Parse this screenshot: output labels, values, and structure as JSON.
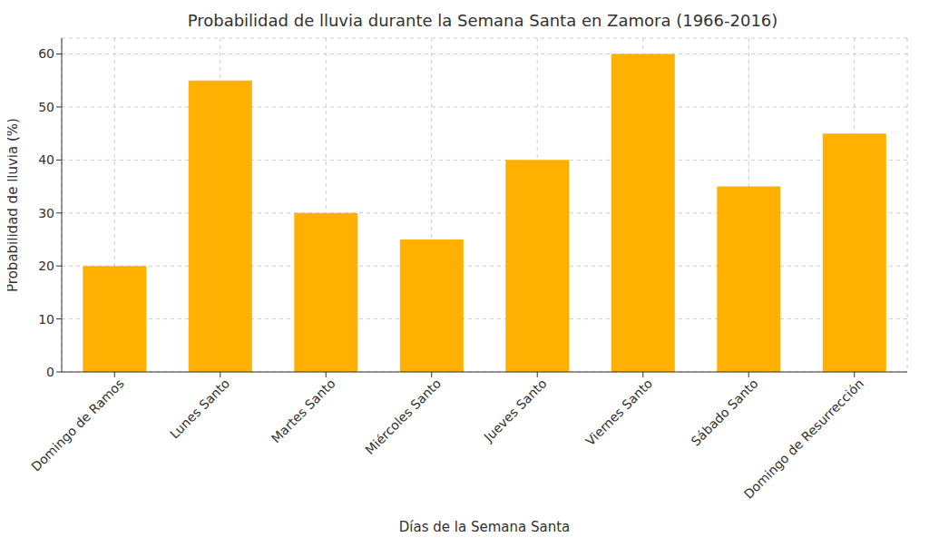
{
  "chart_data": {
    "type": "bar",
    "title": "Probabilidad de lluvia durante la Semana Santa en Zamora (1966-2016)",
    "x_label": "Días de la Semana Santa",
    "y_label": "Probabilidad de lluvia (%)",
    "categories": [
      "Domingo de Ramos",
      "Lunes Santo",
      "Martes Santo",
      "Miércoles Santo",
      "Jueves Santo",
      "Viernes Santo",
      "Sábado Santo",
      "Domingo de Resurrección"
    ],
    "values": [
      20,
      55,
      30,
      25,
      40,
      60,
      35,
      45
    ],
    "color": "#ffb000",
    "ylim": [
      0,
      63
    ],
    "yticks": [
      0,
      10,
      20,
      30,
      40,
      50,
      60
    ],
    "grid": true
  }
}
